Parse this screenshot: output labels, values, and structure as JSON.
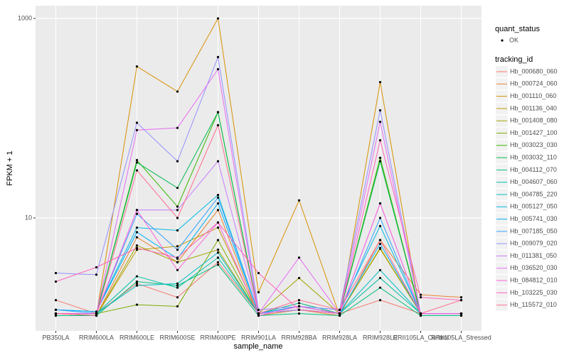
{
  "chart_data": {
    "type": "line",
    "x_label": "sample_name",
    "y_label": "FPKM + 1",
    "log_y": true,
    "grid": true,
    "categories": [
      "PB350LA",
      "RRIM600LA",
      "RRIM600LE",
      "RRIM600SE",
      "RRIM600PE",
      "RRIM901LA",
      "RRIM928BA",
      "RRIM928LA",
      "RRIM928LE",
      "RRII105LA_Control",
      "RRII105LA_Stressed"
    ],
    "ylim": [
      0.738,
      1343
    ],
    "yticks": [
      10,
      1000
    ],
    "point_legend": {
      "title": "quant_status",
      "entries": [
        "OK"
      ]
    },
    "legend_title": "tracking_id",
    "series": [
      {
        "name": "Hb_000680_060",
        "color": "#F8766D",
        "values": [
          1.5,
          1.1,
          2.2,
          1.6,
          3.6,
          1.1,
          1.3,
          1.1,
          1.5,
          1.1,
          1.1
        ]
      },
      {
        "name": "Hb_000724_060",
        "color": "#EA8331",
        "values": [
          1.05,
          1.05,
          6.4,
          3.6,
          12,
          1.05,
          1.2,
          1.05,
          6,
          1.7,
          1.6
        ]
      },
      {
        "name": "Hb_001110_060",
        "color": "#D89000",
        "values": [
          1.05,
          1.05,
          330,
          185,
          1000,
          1.8,
          15,
          1.05,
          230,
          1.05,
          1.05
        ]
      },
      {
        "name": "Hb_001136_040",
        "color": "#C09B00",
        "values": [
          1.1,
          1.05,
          4.8,
          5.2,
          8,
          1.1,
          1.4,
          1.1,
          5,
          1.1,
          1.1
        ]
      },
      {
        "name": "Hb_001408_080",
        "color": "#A3A500",
        "values": [
          1.1,
          1.05,
          5.3,
          3.6,
          4.8,
          1.1,
          2.5,
          1.1,
          4.9,
          1.1,
          1.1
        ]
      },
      {
        "name": "Hb_001427_100",
        "color": "#7CAE00",
        "values": [
          1.1,
          1.1,
          1.35,
          1.3,
          6,
          1.1,
          1.2,
          1.1,
          40,
          1.05,
          1.05
        ]
      },
      {
        "name": "Hb_003023_030",
        "color": "#39B600",
        "values": [
          1.1,
          1.1,
          38,
          13,
          115,
          1.1,
          1.2,
          1.1,
          40,
          1.1,
          1.1
        ]
      },
      {
        "name": "Hb_003032_110",
        "color": "#00BB4E",
        "values": [
          1.1,
          1.1,
          36,
          20,
          115,
          1.1,
          1.3,
          1.1,
          37,
          1.1,
          1.1
        ]
      },
      {
        "name": "Hb_004112_070",
        "color": "#00BF7D",
        "values": [
          1.05,
          1.05,
          2.3,
          2.1,
          3.4,
          1.05,
          1.1,
          1.05,
          2.0,
          1.05,
          1.05
        ]
      },
      {
        "name": "Hb_004607_060",
        "color": "#00C1A3",
        "values": [
          1.1,
          1.1,
          2.6,
          2.0,
          4.0,
          1.1,
          1.4,
          1.1,
          2.5,
          1.1,
          1.1
        ]
      },
      {
        "name": "Hb_004785_220",
        "color": "#00BFC4",
        "values": [
          1.1,
          1.1,
          2.1,
          2.2,
          4.5,
          1.1,
          1.3,
          1.1,
          3.0,
          1.1,
          1.1
        ]
      },
      {
        "name": "Hb_005127_050",
        "color": "#00BAE0",
        "values": [
          1.2,
          1.15,
          8,
          7.5,
          17,
          1.1,
          1.3,
          1.2,
          8.3,
          1.1,
          1.1
        ]
      },
      {
        "name": "Hb_005741_030",
        "color": "#00B0F6",
        "values": [
          1.2,
          1.15,
          7.2,
          3.9,
          14,
          1.1,
          1.2,
          1.1,
          5.5,
          1.1,
          1.1
        ]
      },
      {
        "name": "Hb_007185_050",
        "color": "#35A2FF",
        "values": [
          1.2,
          1.1,
          11,
          4.8,
          16,
          1.1,
          1.3,
          1.1,
          10,
          1.1,
          1.1
        ]
      },
      {
        "name": "Hb_009079_020",
        "color": "#9590FF",
        "values": [
          2.8,
          2.7,
          90,
          37,
          410,
          1.2,
          1.3,
          1.2,
          120,
          1.1,
          1.1
        ]
      },
      {
        "name": "Hb_011381_050",
        "color": "#C77CFF",
        "values": [
          1.1,
          1.1,
          12,
          12,
          37,
          1.1,
          1.2,
          1.1,
          14,
          1.1,
          1.1
        ]
      },
      {
        "name": "Hb_036520_030",
        "color": "#E76BF3",
        "values": [
          1.1,
          1.1,
          76,
          80,
          310,
          1.1,
          4.0,
          1.1,
          92,
          1.1,
          1.1
        ]
      },
      {
        "name": "Hb_084812_010",
        "color": "#FA62DB",
        "values": [
          1.1,
          1.1,
          12,
          3.0,
          9,
          1.05,
          1.3,
          1.1,
          14,
          1.1,
          1.1
        ]
      },
      {
        "name": "Hb_103225_030",
        "color": "#FF62BC",
        "values": [
          2.3,
          3.2,
          5,
          4.0,
          9,
          2.8,
          1.2,
          1.1,
          60,
          1.6,
          1.5
        ]
      },
      {
        "name": "Hb_115572_010",
        "color": "#FF6C91",
        "values": [
          1.1,
          1.05,
          30,
          10,
          85,
          1.1,
          1.5,
          1.2,
          6,
          1.1,
          1.5
        ]
      }
    ]
  }
}
